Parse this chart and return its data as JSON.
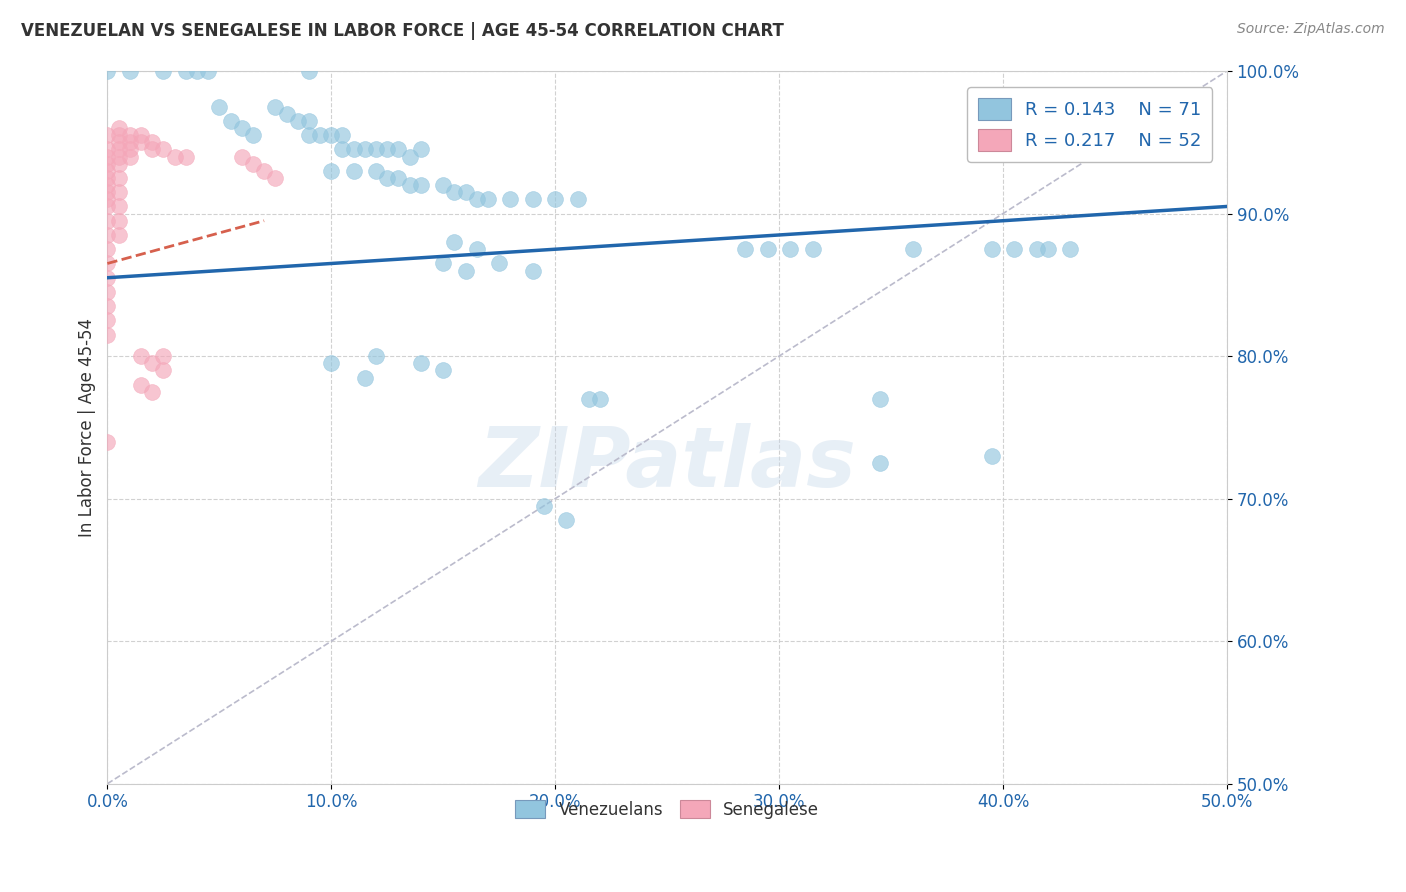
{
  "title": "VENEZUELAN VS SENEGALESE IN LABOR FORCE | AGE 45-54 CORRELATION CHART",
  "source": "Source: ZipAtlas.com",
  "ylabel": "In Labor Force | Age 45-54",
  "xlim": [
    0.0,
    0.5
  ],
  "ylim": [
    0.5,
    1.0
  ],
  "venezuelan_R": "0.143",
  "venezuelan_N": "71",
  "senegalese_R": "0.217",
  "senegalese_N": "52",
  "venezuelan_color": "#92C5DE",
  "senegalese_color": "#F4A7B9",
  "venezuelan_line_color": "#2166AC",
  "senegalese_line_color": "#D6604D",
  "diagonal_color": "#BBBBCC",
  "watermark_text": "ZIPatlas",
  "venezuelan_line": [
    [
      0.0,
      0.855
    ],
    [
      0.5,
      0.905
    ]
  ],
  "senegalese_line": [
    [
      0.0,
      0.865
    ],
    [
      0.07,
      0.895
    ]
  ],
  "venezuelan_scatter": [
    [
      0.0,
      1.0
    ],
    [
      0.01,
      1.0
    ],
    [
      0.025,
      1.0
    ],
    [
      0.035,
      1.0
    ],
    [
      0.04,
      1.0
    ],
    [
      0.045,
      1.0
    ],
    [
      0.05,
      0.975
    ],
    [
      0.055,
      0.965
    ],
    [
      0.06,
      0.96
    ],
    [
      0.065,
      0.955
    ],
    [
      0.075,
      0.975
    ],
    [
      0.08,
      0.97
    ],
    [
      0.085,
      0.965
    ],
    [
      0.09,
      0.965
    ],
    [
      0.09,
      0.955
    ],
    [
      0.095,
      0.955
    ],
    [
      0.1,
      0.955
    ],
    [
      0.105,
      0.955
    ],
    [
      0.105,
      0.945
    ],
    [
      0.11,
      0.945
    ],
    [
      0.115,
      0.945
    ],
    [
      0.12,
      0.945
    ],
    [
      0.125,
      0.945
    ],
    [
      0.13,
      0.945
    ],
    [
      0.135,
      0.94
    ],
    [
      0.14,
      0.945
    ],
    [
      0.1,
      0.93
    ],
    [
      0.11,
      0.93
    ],
    [
      0.12,
      0.93
    ],
    [
      0.125,
      0.925
    ],
    [
      0.13,
      0.925
    ],
    [
      0.135,
      0.92
    ],
    [
      0.14,
      0.92
    ],
    [
      0.15,
      0.92
    ],
    [
      0.155,
      0.915
    ],
    [
      0.16,
      0.915
    ],
    [
      0.165,
      0.91
    ],
    [
      0.17,
      0.91
    ],
    [
      0.18,
      0.91
    ],
    [
      0.19,
      0.91
    ],
    [
      0.2,
      0.91
    ],
    [
      0.21,
      0.91
    ],
    [
      0.155,
      0.88
    ],
    [
      0.165,
      0.875
    ],
    [
      0.175,
      0.865
    ],
    [
      0.15,
      0.865
    ],
    [
      0.16,
      0.86
    ],
    [
      0.19,
      0.86
    ],
    [
      0.285,
      0.875
    ],
    [
      0.295,
      0.875
    ],
    [
      0.305,
      0.875
    ],
    [
      0.315,
      0.875
    ],
    [
      0.36,
      0.875
    ],
    [
      0.395,
      0.875
    ],
    [
      0.405,
      0.875
    ],
    [
      0.415,
      0.875
    ],
    [
      0.42,
      0.875
    ],
    [
      0.43,
      0.875
    ],
    [
      0.345,
      0.77
    ],
    [
      0.395,
      0.73
    ],
    [
      0.195,
      0.695
    ],
    [
      0.345,
      0.725
    ],
    [
      0.205,
      0.685
    ],
    [
      0.215,
      0.77
    ],
    [
      0.22,
      0.77
    ],
    [
      0.1,
      0.795
    ],
    [
      0.115,
      0.785
    ],
    [
      0.14,
      0.795
    ],
    [
      0.15,
      0.79
    ],
    [
      0.12,
      0.8
    ],
    [
      0.09,
      1.0
    ]
  ],
  "senegalese_scatter": [
    [
      0.0,
      0.955
    ],
    [
      0.0,
      0.945
    ],
    [
      0.0,
      0.94
    ],
    [
      0.0,
      0.935
    ],
    [
      0.0,
      0.93
    ],
    [
      0.0,
      0.925
    ],
    [
      0.0,
      0.92
    ],
    [
      0.0,
      0.915
    ],
    [
      0.0,
      0.91
    ],
    [
      0.0,
      0.905
    ],
    [
      0.0,
      0.895
    ],
    [
      0.0,
      0.885
    ],
    [
      0.0,
      0.875
    ],
    [
      0.0,
      0.865
    ],
    [
      0.0,
      0.855
    ],
    [
      0.0,
      0.845
    ],
    [
      0.0,
      0.835
    ],
    [
      0.0,
      0.825
    ],
    [
      0.0,
      0.815
    ],
    [
      0.005,
      0.96
    ],
    [
      0.005,
      0.955
    ],
    [
      0.005,
      0.95
    ],
    [
      0.005,
      0.945
    ],
    [
      0.005,
      0.94
    ],
    [
      0.005,
      0.935
    ],
    [
      0.005,
      0.925
    ],
    [
      0.005,
      0.915
    ],
    [
      0.005,
      0.905
    ],
    [
      0.005,
      0.895
    ],
    [
      0.005,
      0.885
    ],
    [
      0.01,
      0.955
    ],
    [
      0.01,
      0.95
    ],
    [
      0.01,
      0.945
    ],
    [
      0.01,
      0.94
    ],
    [
      0.015,
      0.955
    ],
    [
      0.015,
      0.95
    ],
    [
      0.02,
      0.95
    ],
    [
      0.02,
      0.945
    ],
    [
      0.025,
      0.945
    ],
    [
      0.03,
      0.94
    ],
    [
      0.035,
      0.94
    ],
    [
      0.015,
      0.8
    ],
    [
      0.02,
      0.795
    ],
    [
      0.025,
      0.79
    ],
    [
      0.015,
      0.78
    ],
    [
      0.02,
      0.775
    ],
    [
      0.0,
      0.74
    ],
    [
      0.025,
      0.8
    ],
    [
      0.06,
      0.94
    ],
    [
      0.065,
      0.935
    ],
    [
      0.07,
      0.93
    ],
    [
      0.075,
      0.925
    ]
  ]
}
